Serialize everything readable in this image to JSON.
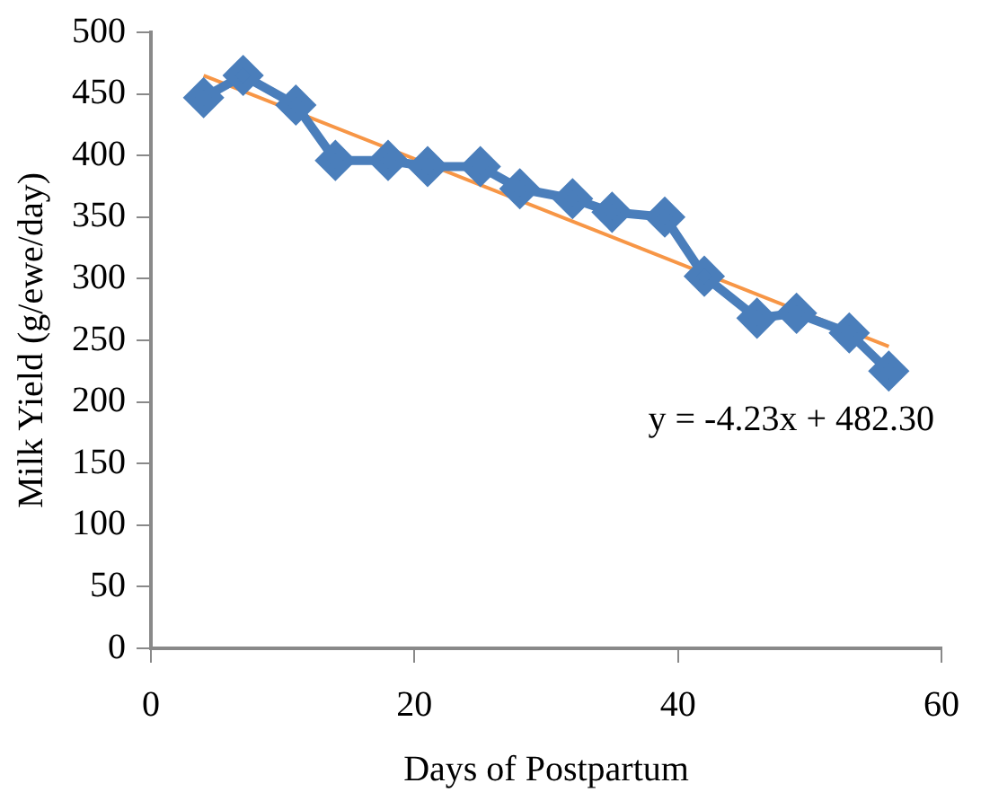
{
  "chart_data": {
    "type": "line",
    "xlabel": "Days of Postpartum",
    "ylabel": "Milk Yield (g/ewe/day)",
    "xlim": [
      0,
      60
    ],
    "xticks": [
      0,
      20,
      40,
      60
    ],
    "ylim": [
      0,
      500
    ],
    "yticks": [
      0,
      50,
      100,
      150,
      200,
      250,
      300,
      350,
      400,
      450,
      500
    ],
    "grid": false,
    "legend": false,
    "marker": "diamond",
    "series": [
      {
        "color": "#4a7ebb",
        "x": [
          4,
          7,
          11,
          14,
          18,
          21,
          25,
          28,
          32,
          35,
          39,
          42,
          46,
          49,
          53,
          56
        ],
        "values": [
          447,
          465,
          441,
          396,
          396,
          391,
          391,
          373,
          365,
          354,
          350,
          302,
          268,
          272,
          256,
          225
        ]
      },
      {
        "type": "line",
        "color": "#f79646",
        "marker": "none",
        "x": [
          4,
          56
        ],
        "values": [
          465,
          245
        ]
      }
    ],
    "annotations": [
      "y = -4.23x + 482.30"
    ]
  }
}
